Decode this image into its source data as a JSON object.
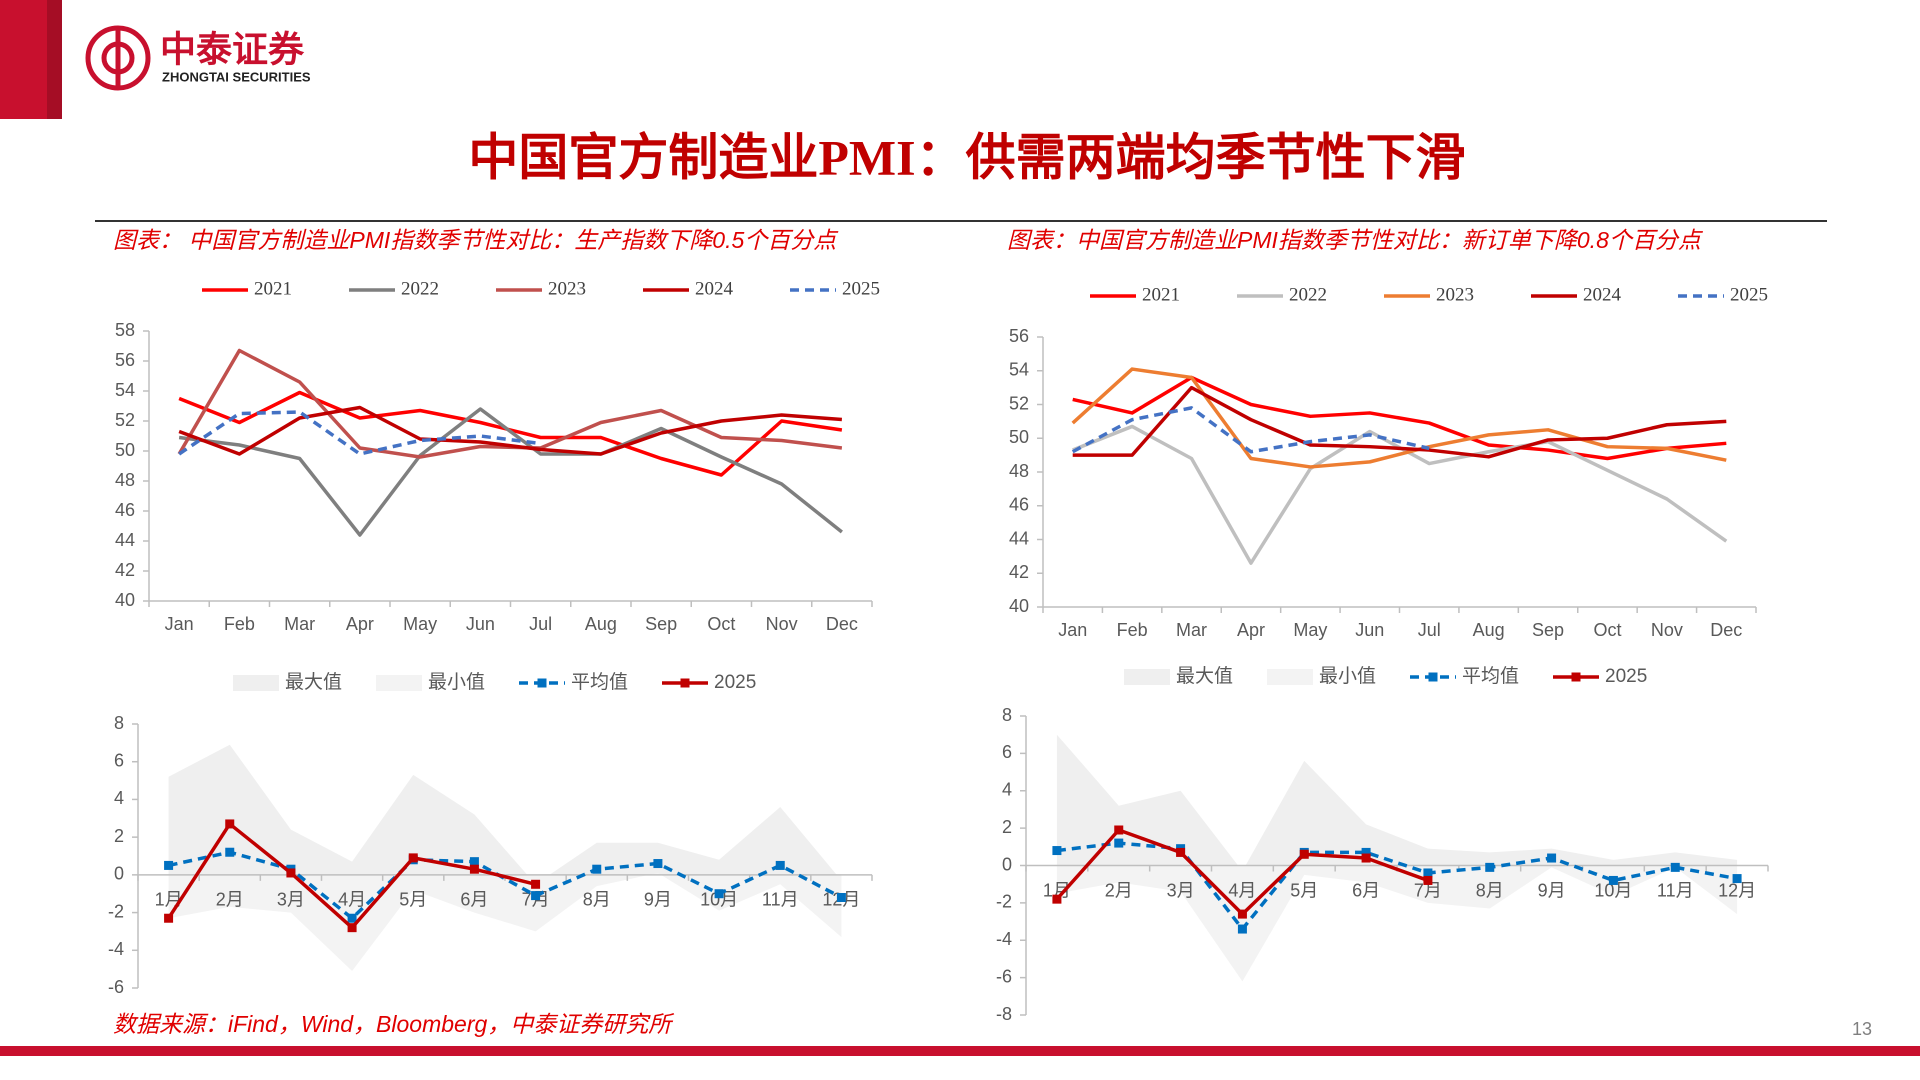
{
  "header": {
    "logo_cn": "中泰证券",
    "logo_en": "ZHONGTAI SECURITIES"
  },
  "title": "中国官方制造业PMI：供需两端均季节性下滑",
  "source": "数据来源：iFind，Wind，Bloomberg，中泰证券研究所",
  "page_number": "13",
  "chart_data": [
    {
      "type": "line",
      "title": "图表： 中国官方制造业PMI指数季节性对比：生产指数下降0.5个百分点",
      "categories": [
        "Jan",
        "Feb",
        "Mar",
        "Apr",
        "May",
        "Jun",
        "Jul",
        "Aug",
        "Sep",
        "Oct",
        "Nov",
        "Dec"
      ],
      "ylim": [
        40,
        58
      ],
      "yticks": [
        40,
        42,
        44,
        46,
        48,
        50,
        52,
        54,
        56,
        58
      ],
      "legend": "top",
      "series": [
        {
          "name": "2021",
          "color": "#ff0000",
          "values": [
            53.5,
            51.9,
            53.9,
            52.2,
            52.7,
            51.9,
            50.9,
            50.9,
            49.5,
            48.4,
            52.0,
            51.4
          ]
        },
        {
          "name": "2022",
          "color": "#7f7f7f",
          "values": [
            50.9,
            50.4,
            49.5,
            44.4,
            49.7,
            52.8,
            49.8,
            49.8,
            51.5,
            49.6,
            47.8,
            44.6
          ]
        },
        {
          "name": "2023",
          "color": "#c0504d",
          "values": [
            49.8,
            56.7,
            54.6,
            50.2,
            49.6,
            50.3,
            50.2,
            51.9,
            52.7,
            50.9,
            50.7,
            50.2
          ]
        },
        {
          "name": "2024",
          "color": "#c00000",
          "values": [
            51.3,
            49.8,
            52.2,
            52.9,
            50.8,
            50.6,
            50.1,
            49.8,
            51.2,
            52.0,
            52.4,
            52.1
          ]
        },
        {
          "name": "2025",
          "color": "#4472c4",
          "dashed": true,
          "values": [
            49.8,
            52.5,
            52.6,
            49.8,
            50.7,
            51.0,
            50.5,
            null,
            null,
            null,
            null,
            null
          ]
        }
      ]
    },
    {
      "type": "line",
      "categories": [
        "1月",
        "2月",
        "3月",
        "4月",
        "5月",
        "6月",
        "7月",
        "8月",
        "9月",
        "10月",
        "11月",
        "12月"
      ],
      "ylim": [
        -6,
        8
      ],
      "yticks": [
        -6,
        -4,
        -2,
        0,
        2,
        4,
        6,
        8
      ],
      "legend": "top",
      "series": [
        {
          "name": "最大值",
          "color": "#efefef",
          "kind": "area",
          "values": [
            5.2,
            6.9,
            2.4,
            0.7,
            5.3,
            3.2,
            -0.5,
            1.7,
            1.7,
            0.8,
            3.6,
            -0.3
          ]
        },
        {
          "name": "最小值",
          "color": "#f3f3f3",
          "kind": "area",
          "values": [
            -2.3,
            -1.7,
            -2.0,
            -5.1,
            -0.8,
            -2.0,
            -3.0,
            -0.6,
            0.1,
            -1.9,
            -0.5,
            -3.3
          ]
        },
        {
          "name": "平均值",
          "color": "#0070c0",
          "dashed": true,
          "marker": "square",
          "values": [
            0.5,
            1.2,
            0.3,
            -2.3,
            0.8,
            0.7,
            -1.1,
            0.3,
            0.6,
            -1.0,
            0.5,
            -1.2
          ]
        },
        {
          "name": "2025",
          "color": "#c00000",
          "marker": "square",
          "values": [
            -2.3,
            2.7,
            0.1,
            -2.8,
            0.9,
            0.3,
            -0.5,
            null,
            null,
            null,
            null,
            null
          ]
        }
      ]
    },
    {
      "type": "line",
      "title": "图表：中国官方制造业PMI指数季节性对比：新订单下降0.8个百分点",
      "categories": [
        "Jan",
        "Feb",
        "Mar",
        "Apr",
        "May",
        "Jun",
        "Jul",
        "Aug",
        "Sep",
        "Oct",
        "Nov",
        "Dec"
      ],
      "ylim": [
        40,
        56
      ],
      "yticks": [
        40,
        42,
        44,
        46,
        48,
        50,
        52,
        54,
        56
      ],
      "legend": "top",
      "series": [
        {
          "name": "2021",
          "color": "#ff0000",
          "values": [
            52.3,
            51.5,
            53.6,
            52.0,
            51.3,
            51.5,
            50.9,
            49.6,
            49.3,
            48.8,
            49.4,
            49.7
          ]
        },
        {
          "name": "2022",
          "color": "#bfbfbf",
          "values": [
            49.3,
            50.7,
            48.8,
            42.6,
            48.2,
            50.4,
            48.5,
            49.2,
            49.8,
            48.1,
            46.4,
            43.9
          ]
        },
        {
          "name": "2023",
          "color": "#ed7d31",
          "values": [
            50.9,
            54.1,
            53.6,
            48.8,
            48.3,
            48.6,
            49.5,
            50.2,
            50.5,
            49.5,
            49.4,
            48.7
          ]
        },
        {
          "name": "2024",
          "color": "#c00000",
          "values": [
            49.0,
            49.0,
            53.0,
            51.1,
            49.6,
            49.5,
            49.3,
            48.9,
            49.9,
            50.0,
            50.8,
            51.0
          ]
        },
        {
          "name": "2025",
          "color": "#4472c4",
          "dashed": true,
          "values": [
            49.2,
            51.1,
            51.8,
            49.2,
            49.8,
            50.2,
            49.4,
            null,
            null,
            null,
            null,
            null
          ]
        }
      ]
    },
    {
      "type": "line",
      "categories": [
        "1月",
        "2月",
        "3月",
        "4月",
        "5月",
        "6月",
        "7月",
        "8月",
        "9月",
        "10月",
        "11月",
        "12月"
      ],
      "ylim": [
        -8,
        8
      ],
      "yticks": [
        -8,
        -6,
        -4,
        -2,
        0,
        2,
        4,
        6,
        8
      ],
      "legend": "top",
      "series": [
        {
          "name": "最大值",
          "color": "#efefef",
          "kind": "area",
          "values": [
            7.0,
            3.2,
            4.0,
            -0.3,
            5.6,
            2.2,
            0.9,
            0.7,
            0.9,
            0.3,
            0.7,
            0.3
          ]
        },
        {
          "name": "最小值",
          "color": "#f3f3f3",
          "kind": "area",
          "values": [
            -1.5,
            -0.9,
            -1.4,
            -6.2,
            -0.5,
            -0.9,
            -2.0,
            -2.3,
            -0.1,
            -1.6,
            -0.1,
            -2.6
          ]
        },
        {
          "name": "平均值",
          "color": "#0070c0",
          "dashed": true,
          "marker": "square",
          "values": [
            0.8,
            1.2,
            0.9,
            -3.4,
            0.7,
            0.7,
            -0.4,
            -0.1,
            0.4,
            -0.8,
            -0.1,
            -0.7
          ]
        },
        {
          "name": "2025",
          "color": "#c00000",
          "marker": "square",
          "values": [
            -1.8,
            1.9,
            0.7,
            -2.6,
            0.6,
            0.4,
            -0.8,
            null,
            null,
            null,
            null,
            null
          ]
        }
      ]
    }
  ]
}
